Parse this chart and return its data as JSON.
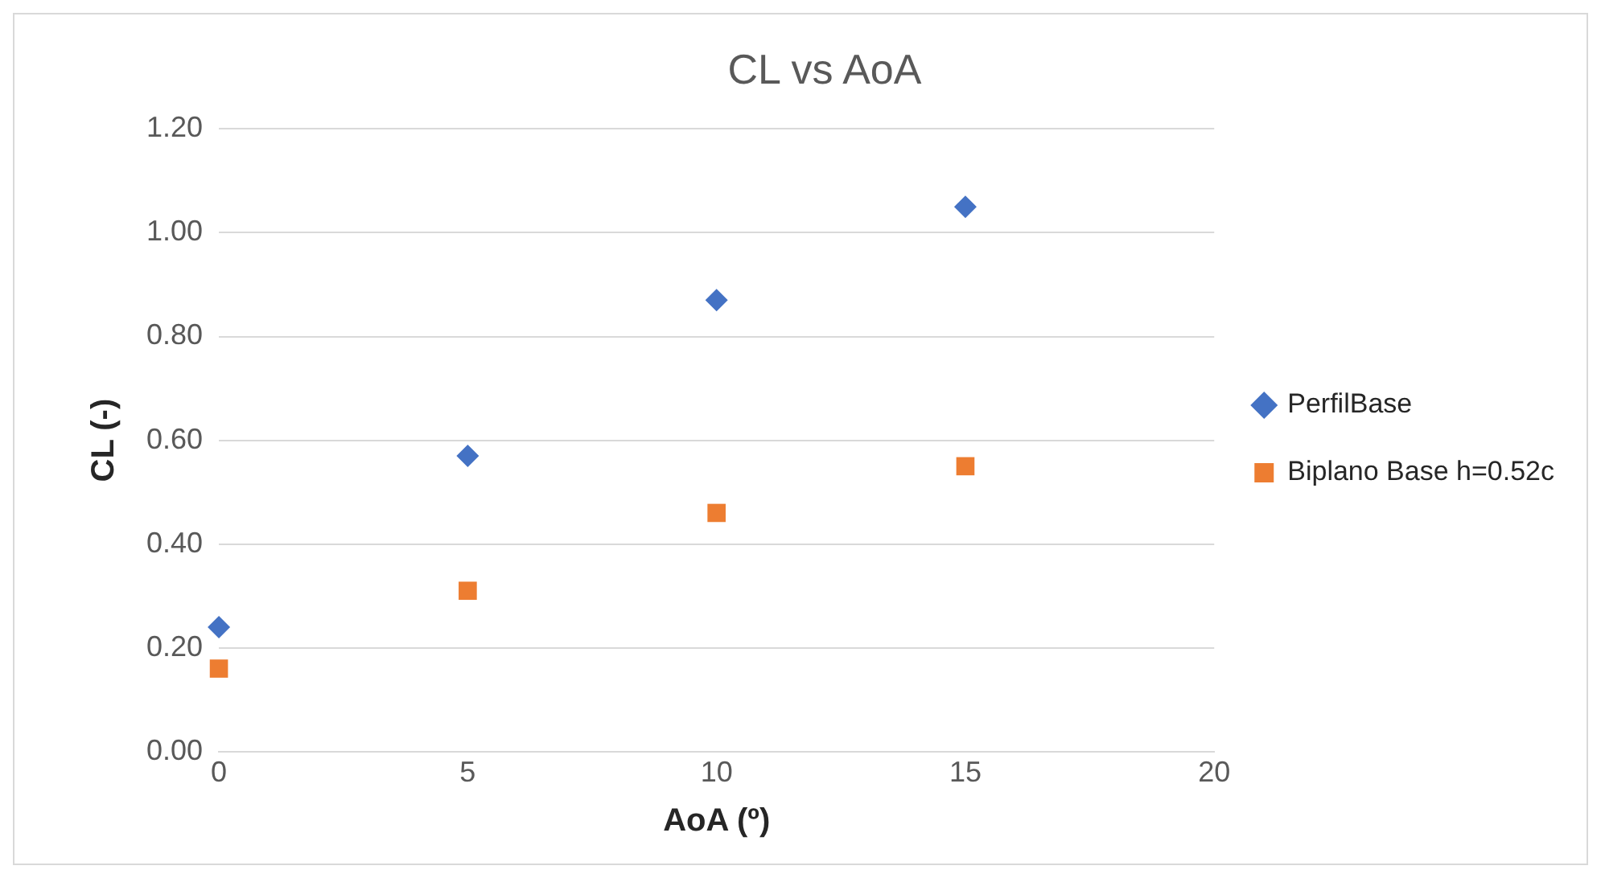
{
  "chart_data": {
    "type": "scatter",
    "title": "CL vs AoA",
    "xlabel": "AoA (º)",
    "ylabel": "CL (-)",
    "series": [
      {
        "name": "PerfilBase",
        "color": "#4472c4",
        "marker": "diamond",
        "x": [
          0,
          5,
          10,
          15
        ],
        "values": [
          0.24,
          0.57,
          0.87,
          1.05
        ]
      },
      {
        "name": "Biplano Base h=0.52c",
        "color": "#ed7d31",
        "marker": "square",
        "x": [
          0,
          5,
          10,
          15
        ],
        "values": [
          0.16,
          0.31,
          0.46,
          0.55
        ]
      }
    ],
    "xlim": [
      0,
      20
    ],
    "xticks": [
      0,
      5,
      10,
      15,
      20
    ],
    "ylim": [
      0,
      1.2
    ],
    "yticks": [
      {
        "value": 0,
        "label": "0.00"
      },
      {
        "value": 0.2,
        "label": "0.20"
      },
      {
        "value": 0.4,
        "label": "0.40"
      },
      {
        "value": 0.6,
        "label": "0.60"
      },
      {
        "value": 0.8,
        "label": "0.80"
      },
      {
        "value": 1,
        "label": "1.00"
      },
      {
        "value": 1.2,
        "label": "1.20"
      }
    ],
    "grid": "y",
    "legend": "right"
  }
}
